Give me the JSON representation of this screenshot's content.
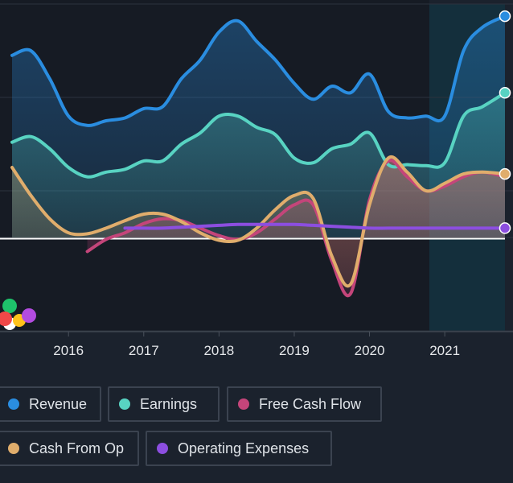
{
  "chart_data": {
    "type": "area",
    "x_ticks": [
      "2016",
      "2017",
      "2018",
      "2019",
      "2020",
      "2021"
    ],
    "xlim": [
      2015.25,
      2021.8
    ],
    "ylim": [
      -100,
      250
    ],
    "forecast_start": 2020.75,
    "legend_placement": "bottom",
    "grid": "horizontal",
    "series": [
      {
        "name": "Revenue",
        "color": "#2a8de0",
        "x": [
          2015.25,
          2015.5,
          2015.75,
          2016,
          2016.25,
          2016.5,
          2016.75,
          2017,
          2017.25,
          2017.5,
          2017.75,
          2018,
          2018.25,
          2018.5,
          2018.75,
          2019,
          2019.25,
          2019.5,
          2019.75,
          2020,
          2020.25,
          2020.5,
          2020.75,
          2021,
          2021.25,
          2021.5,
          2021.8
        ],
        "y": [
          195,
          200,
          170,
          130,
          120,
          125,
          128,
          138,
          140,
          170,
          190,
          220,
          232,
          210,
          190,
          165,
          148,
          162,
          155,
          175,
          135,
          128,
          130,
          130,
          200,
          225,
          237
        ]
      },
      {
        "name": "Earnings",
        "color": "#58d3c2",
        "x": [
          2015.25,
          2015.5,
          2015.75,
          2016,
          2016.25,
          2016.5,
          2016.75,
          2017,
          2017.25,
          2017.5,
          2017.75,
          2018,
          2018.25,
          2018.5,
          2018.75,
          2019,
          2019.25,
          2019.5,
          2019.75,
          2020,
          2020.25,
          2020.5,
          2020.75,
          2021,
          2021.25,
          2021.5,
          2021.8
        ],
        "y": [
          102,
          108,
          95,
          75,
          65,
          70,
          73,
          82,
          82,
          100,
          112,
          130,
          130,
          118,
          110,
          85,
          80,
          95,
          100,
          112,
          78,
          78,
          77,
          80,
          130,
          140,
          155
        ]
      },
      {
        "name": "Free Cash Flow",
        "color": "#c4457a",
        "x": [
          2016.25,
          2016.5,
          2016.75,
          2017,
          2017.25,
          2017.5,
          2017.75,
          2018,
          2018.25,
          2018.5,
          2018.75,
          2019,
          2019.25,
          2019.5,
          2019.75,
          2020,
          2020.25,
          2020.5,
          2020.75,
          2021,
          2021.25,
          2021.5,
          2021.8
        ],
        "y": [
          -15,
          -2,
          5,
          15,
          20,
          18,
          10,
          2,
          -2,
          5,
          20,
          35,
          35,
          -25,
          -60,
          40,
          82,
          65,
          50,
          55,
          65,
          70,
          65
        ]
      },
      {
        "name": "Cash From Op",
        "color": "#e0ad6c",
        "x": [
          2015.25,
          2015.5,
          2015.75,
          2016,
          2016.25,
          2016.5,
          2016.75,
          2017,
          2017.25,
          2017.5,
          2017.75,
          2018,
          2018.25,
          2018.5,
          2018.75,
          2019,
          2019.25,
          2019.5,
          2019.75,
          2020,
          2020.25,
          2020.5,
          2020.75,
          2021,
          2021.25,
          2021.5,
          2021.8
        ],
        "y": [
          75,
          45,
          20,
          5,
          4,
          10,
          18,
          25,
          25,
          17,
          5,
          -3,
          -3,
          10,
          30,
          45,
          42,
          -20,
          -50,
          35,
          85,
          70,
          50,
          58,
          68,
          70,
          68
        ]
      },
      {
        "name": "Operating Expenses",
        "color": "#8c4ee0",
        "x": [
          2016.75,
          2017,
          2017.25,
          2017.5,
          2017.75,
          2018,
          2018.25,
          2018.5,
          2018.75,
          2019,
          2019.25,
          2019.5,
          2019.75,
          2020,
          2020.25,
          2020.5,
          2020.75,
          2021,
          2021.25,
          2021.5,
          2021.8
        ],
        "y": [
          10,
          10,
          10,
          11,
          12,
          13,
          14,
          14,
          14,
          14,
          13,
          12,
          11,
          10,
          10,
          10,
          10,
          10,
          10,
          10,
          10
        ]
      }
    ]
  },
  "legend": [
    {
      "label": "Revenue",
      "color": "#2a8de0"
    },
    {
      "label": "Earnings",
      "color": "#58d3c2"
    },
    {
      "label": "Free Cash Flow",
      "color": "#c4457a"
    },
    {
      "label": "Cash From Op",
      "color": "#e0ad6c"
    },
    {
      "label": "Operating Expenses",
      "color": "#8c4ee0"
    }
  ],
  "marker_colors": [
    "#ffffff",
    "#1ec26b",
    "#ffc21a",
    "#b34ce0",
    "#f04848"
  ]
}
